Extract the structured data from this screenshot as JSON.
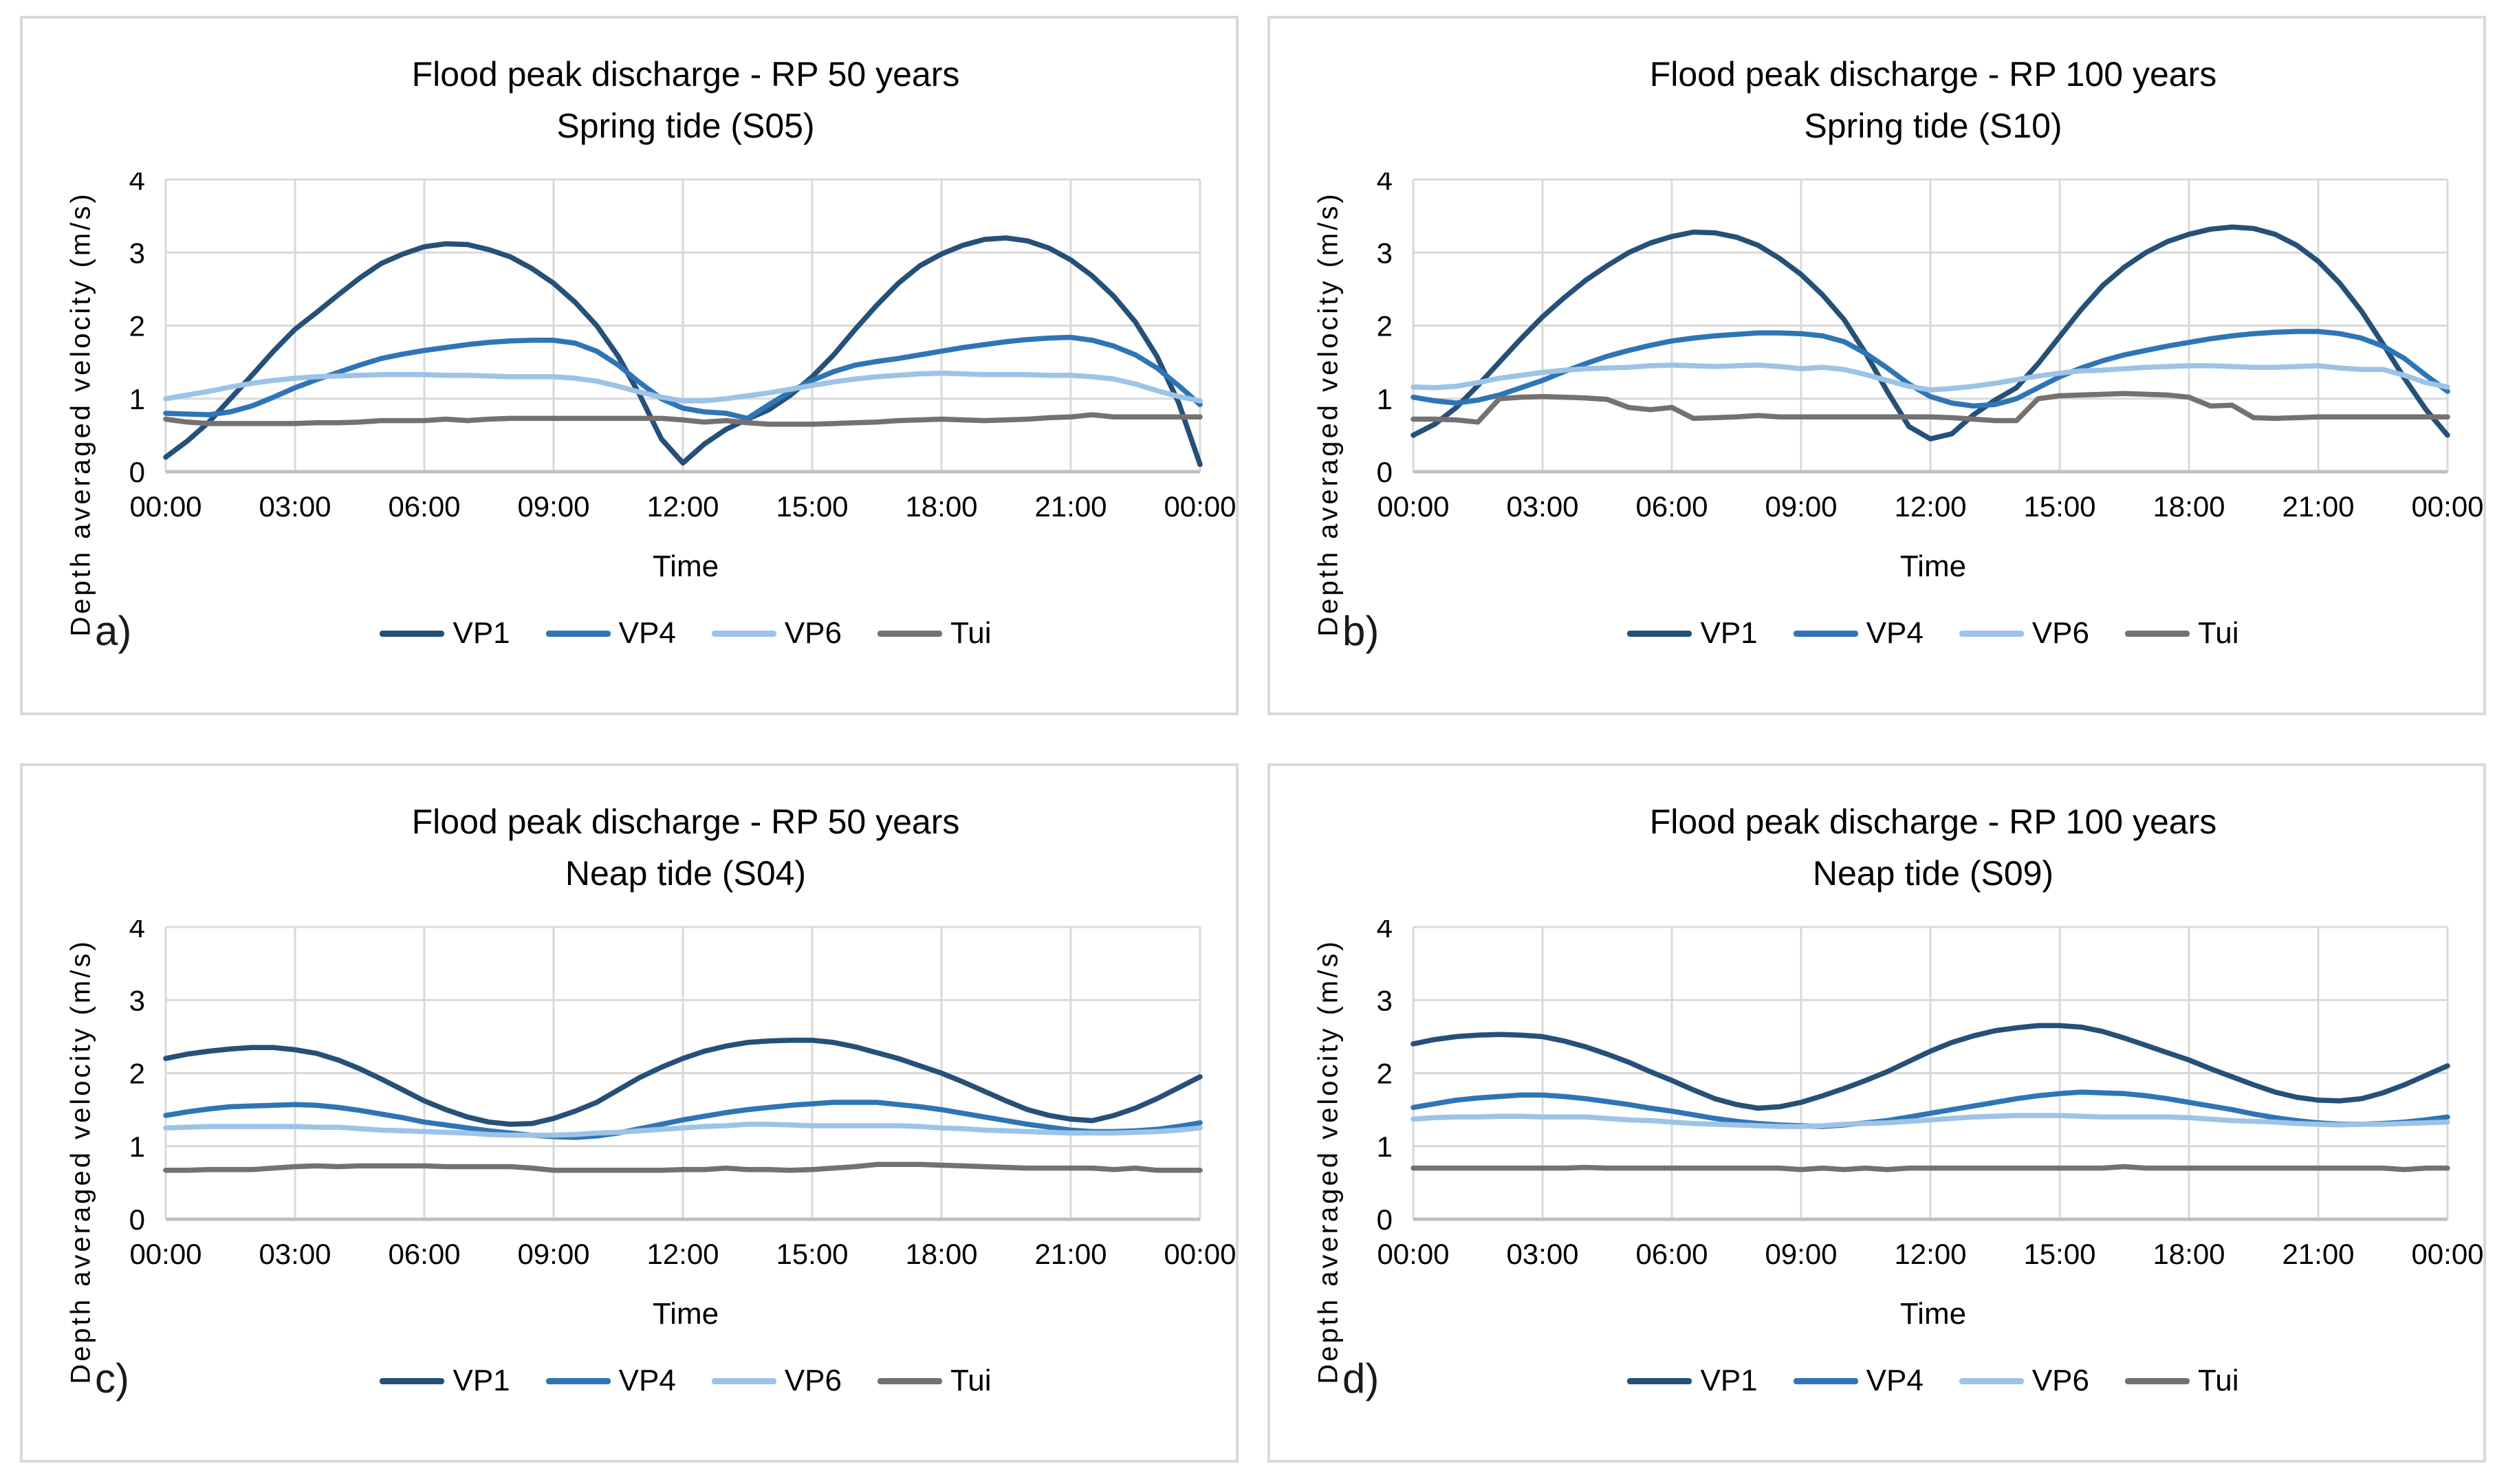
{
  "figure": {
    "background_color": "#ffffff",
    "panel_border_color": "#D9D9D9",
    "gridline_color": "#D9D9D9",
    "axis_line_color": "#BFBFBF",
    "text_color": "#000000",
    "tick_font_size": 42,
    "series_stroke_width": 7.5,
    "gridline_stroke_width": 3,
    "axis_stroke_width": 5
  },
  "chart_data": [
    {
      "panel_label": "a)",
      "type": "line",
      "title": "Flood peak discharge - RP 50 years",
      "subtitle": "Spring tide (S05)",
      "xlabel": "Time",
      "ylabel": "Depth averaged velocity (m/s)",
      "ylim": [
        0,
        4
      ],
      "yticks": [
        0,
        1,
        2,
        3,
        4
      ],
      "x_hours_start": 0,
      "x_hours_end": 24,
      "x_step_hours": 0.5,
      "xticks_hours": [
        0,
        3,
        6,
        9,
        12,
        15,
        18,
        21,
        24
      ],
      "xtick_labels": [
        "00:00",
        "03:00",
        "06:00",
        "09:00",
        "12:00",
        "15:00",
        "18:00",
        "21:00",
        "00:00"
      ],
      "grid": true,
      "legend_position": "bottom",
      "series": [
        {
          "name": "VP1",
          "color": "#255078",
          "values": [
            0.2,
            0.42,
            0.68,
            1.0,
            1.32,
            1.65,
            1.95,
            2.18,
            2.42,
            2.65,
            2.85,
            2.98,
            3.08,
            3.12,
            3.11,
            3.04,
            2.94,
            2.78,
            2.58,
            2.32,
            2.0,
            1.58,
            1.05,
            0.45,
            0.12,
            0.38,
            0.58,
            0.72,
            0.85,
            1.05,
            1.3,
            1.6,
            1.95,
            2.28,
            2.58,
            2.82,
            2.98,
            3.1,
            3.18,
            3.2,
            3.16,
            3.06,
            2.9,
            2.68,
            2.4,
            2.05,
            1.58,
            0.95,
            0.1
          ]
        },
        {
          "name": "VP4",
          "color": "#2E75B6",
          "values": [
            0.8,
            0.79,
            0.78,
            0.82,
            0.9,
            1.02,
            1.15,
            1.26,
            1.36,
            1.46,
            1.55,
            1.61,
            1.66,
            1.7,
            1.74,
            1.77,
            1.79,
            1.8,
            1.8,
            1.76,
            1.65,
            1.46,
            1.22,
            1.0,
            0.87,
            0.82,
            0.8,
            0.73,
            0.92,
            1.1,
            1.25,
            1.37,
            1.46,
            1.51,
            1.55,
            1.6,
            1.65,
            1.7,
            1.74,
            1.78,
            1.81,
            1.83,
            1.84,
            1.8,
            1.72,
            1.6,
            1.42,
            1.18,
            0.92
          ]
        },
        {
          "name": "VP6",
          "color": "#9DC3E6",
          "values": [
            1.0,
            1.05,
            1.1,
            1.16,
            1.21,
            1.25,
            1.28,
            1.3,
            1.31,
            1.32,
            1.33,
            1.33,
            1.33,
            1.32,
            1.32,
            1.31,
            1.3,
            1.3,
            1.3,
            1.28,
            1.24,
            1.17,
            1.09,
            1.02,
            0.97,
            0.97,
            1.0,
            1.04,
            1.08,
            1.13,
            1.18,
            1.23,
            1.27,
            1.3,
            1.32,
            1.34,
            1.35,
            1.34,
            1.33,
            1.33,
            1.33,
            1.32,
            1.32,
            1.3,
            1.27,
            1.2,
            1.11,
            1.03,
            0.97
          ]
        },
        {
          "name": "Tui",
          "color": "#767171",
          "values": [
            0.72,
            0.68,
            0.66,
            0.66,
            0.66,
            0.66,
            0.66,
            0.67,
            0.67,
            0.68,
            0.7,
            0.7,
            0.7,
            0.72,
            0.7,
            0.72,
            0.73,
            0.73,
            0.73,
            0.73,
            0.73,
            0.73,
            0.73,
            0.73,
            0.71,
            0.68,
            0.7,
            0.67,
            0.65,
            0.65,
            0.65,
            0.66,
            0.67,
            0.68,
            0.7,
            0.71,
            0.72,
            0.71,
            0.7,
            0.71,
            0.72,
            0.74,
            0.75,
            0.78,
            0.75,
            0.75,
            0.75,
            0.75,
            0.75
          ]
        }
      ]
    },
    {
      "panel_label": "b)",
      "type": "line",
      "title": "Flood peak discharge - RP 100 years",
      "subtitle": "Spring tide (S10)",
      "xlabel": "Time",
      "ylabel": "Depth averaged velocity (m/s)",
      "ylim": [
        0,
        4
      ],
      "yticks": [
        0,
        1,
        2,
        3,
        4
      ],
      "x_hours_start": 0,
      "x_hours_end": 24,
      "x_step_hours": 0.5,
      "xticks_hours": [
        0,
        3,
        6,
        9,
        12,
        15,
        18,
        21,
        24
      ],
      "xtick_labels": [
        "00:00",
        "03:00",
        "06:00",
        "09:00",
        "12:00",
        "15:00",
        "18:00",
        "21:00",
        "00:00"
      ],
      "grid": true,
      "legend_position": "bottom",
      "series": [
        {
          "name": "VP1",
          "color": "#255078",
          "values": [
            0.5,
            0.65,
            0.88,
            1.18,
            1.5,
            1.82,
            2.12,
            2.38,
            2.62,
            2.82,
            3.0,
            3.13,
            3.22,
            3.28,
            3.27,
            3.21,
            3.1,
            2.92,
            2.7,
            2.42,
            2.08,
            1.62,
            1.1,
            0.62,
            0.45,
            0.52,
            0.78,
            0.98,
            1.15,
            1.48,
            1.85,
            2.22,
            2.55,
            2.8,
            3.0,
            3.15,
            3.25,
            3.32,
            3.35,
            3.33,
            3.25,
            3.1,
            2.88,
            2.58,
            2.2,
            1.75,
            1.28,
            0.85,
            0.5
          ]
        },
        {
          "name": "VP4",
          "color": "#2E75B6",
          "values": [
            1.02,
            0.97,
            0.94,
            0.98,
            1.05,
            1.15,
            1.25,
            1.37,
            1.48,
            1.58,
            1.66,
            1.73,
            1.79,
            1.83,
            1.86,
            1.88,
            1.9,
            1.9,
            1.89,
            1.86,
            1.78,
            1.62,
            1.42,
            1.2,
            1.03,
            0.94,
            0.9,
            0.92,
            1.0,
            1.15,
            1.3,
            1.42,
            1.52,
            1.6,
            1.66,
            1.72,
            1.77,
            1.82,
            1.86,
            1.89,
            1.91,
            1.92,
            1.92,
            1.89,
            1.83,
            1.72,
            1.55,
            1.32,
            1.1
          ]
        },
        {
          "name": "VP6",
          "color": "#9DC3E6",
          "values": [
            1.16,
            1.15,
            1.17,
            1.22,
            1.28,
            1.32,
            1.36,
            1.39,
            1.41,
            1.42,
            1.43,
            1.45,
            1.46,
            1.45,
            1.44,
            1.45,
            1.46,
            1.44,
            1.41,
            1.43,
            1.4,
            1.33,
            1.25,
            1.17,
            1.12,
            1.14,
            1.17,
            1.21,
            1.26,
            1.31,
            1.35,
            1.38,
            1.39,
            1.41,
            1.43,
            1.44,
            1.45,
            1.45,
            1.44,
            1.43,
            1.43,
            1.44,
            1.45,
            1.42,
            1.4,
            1.4,
            1.32,
            1.22,
            1.16
          ]
        },
        {
          "name": "Tui",
          "color": "#767171",
          "values": [
            0.72,
            0.72,
            0.71,
            0.68,
            1.0,
            1.02,
            1.03,
            1.02,
            1.01,
            0.99,
            0.88,
            0.85,
            0.88,
            0.73,
            0.74,
            0.75,
            0.77,
            0.75,
            0.75,
            0.75,
            0.75,
            0.75,
            0.75,
            0.75,
            0.75,
            0.74,
            0.72,
            0.7,
            0.7,
            1.0,
            1.04,
            1.05,
            1.06,
            1.07,
            1.06,
            1.05,
            1.02,
            0.9,
            0.91,
            0.74,
            0.73,
            0.74,
            0.75,
            0.75,
            0.75,
            0.75,
            0.75,
            0.75,
            0.75
          ]
        }
      ]
    },
    {
      "panel_label": "c)",
      "type": "line",
      "title": "Flood peak discharge - RP 50 years",
      "subtitle": "Neap tide (S04)",
      "xlabel": "Time",
      "ylabel": "Depth averaged velocity (m/s)",
      "ylim": [
        0,
        4
      ],
      "yticks": [
        0,
        1,
        2,
        3,
        4
      ],
      "x_hours_start": 0,
      "x_hours_end": 24,
      "x_step_hours": 0.5,
      "xticks_hours": [
        0,
        3,
        6,
        9,
        12,
        15,
        18,
        21,
        24
      ],
      "xtick_labels": [
        "00:00",
        "03:00",
        "06:00",
        "09:00",
        "12:00",
        "15:00",
        "18:00",
        "21:00",
        "00:00"
      ],
      "grid": true,
      "legend_position": "bottom",
      "series": [
        {
          "name": "VP1",
          "color": "#255078",
          "values": [
            2.2,
            2.26,
            2.3,
            2.33,
            2.35,
            2.35,
            2.32,
            2.27,
            2.18,
            2.06,
            1.92,
            1.77,
            1.62,
            1.5,
            1.4,
            1.33,
            1.3,
            1.31,
            1.38,
            1.48,
            1.6,
            1.77,
            1.94,
            2.08,
            2.2,
            2.3,
            2.37,
            2.42,
            2.44,
            2.45,
            2.45,
            2.42,
            2.36,
            2.28,
            2.2,
            2.1,
            2.0,
            1.88,
            1.75,
            1.62,
            1.5,
            1.42,
            1.37,
            1.35,
            1.42,
            1.52,
            1.65,
            1.8,
            1.95
          ]
        },
        {
          "name": "VP4",
          "color": "#2E75B6",
          "values": [
            1.42,
            1.47,
            1.51,
            1.54,
            1.55,
            1.56,
            1.57,
            1.56,
            1.53,
            1.49,
            1.44,
            1.39,
            1.33,
            1.29,
            1.25,
            1.21,
            1.18,
            1.15,
            1.13,
            1.12,
            1.14,
            1.18,
            1.24,
            1.3,
            1.36,
            1.41,
            1.46,
            1.5,
            1.53,
            1.56,
            1.58,
            1.6,
            1.6,
            1.6,
            1.57,
            1.54,
            1.5,
            1.45,
            1.4,
            1.35,
            1.3,
            1.26,
            1.22,
            1.2,
            1.2,
            1.21,
            1.23,
            1.27,
            1.32
          ]
        },
        {
          "name": "VP6",
          "color": "#9DC3E6",
          "values": [
            1.25,
            1.26,
            1.27,
            1.27,
            1.27,
            1.27,
            1.27,
            1.26,
            1.26,
            1.24,
            1.22,
            1.21,
            1.2,
            1.19,
            1.18,
            1.16,
            1.15,
            1.15,
            1.15,
            1.16,
            1.18,
            1.19,
            1.21,
            1.23,
            1.25,
            1.27,
            1.28,
            1.3,
            1.3,
            1.29,
            1.28,
            1.28,
            1.28,
            1.28,
            1.28,
            1.27,
            1.25,
            1.24,
            1.22,
            1.21,
            1.2,
            1.19,
            1.18,
            1.18,
            1.18,
            1.19,
            1.2,
            1.22,
            1.25
          ]
        },
        {
          "name": "Tui",
          "color": "#767171",
          "values": [
            0.67,
            0.67,
            0.68,
            0.68,
            0.68,
            0.7,
            0.72,
            0.73,
            0.72,
            0.73,
            0.73,
            0.73,
            0.73,
            0.72,
            0.72,
            0.72,
            0.72,
            0.7,
            0.67,
            0.67,
            0.67,
            0.67,
            0.67,
            0.67,
            0.68,
            0.68,
            0.7,
            0.68,
            0.68,
            0.67,
            0.68,
            0.7,
            0.72,
            0.75,
            0.75,
            0.75,
            0.74,
            0.73,
            0.72,
            0.71,
            0.7,
            0.7,
            0.7,
            0.7,
            0.68,
            0.7,
            0.67,
            0.67,
            0.67
          ]
        }
      ]
    },
    {
      "panel_label": "d)",
      "type": "line",
      "title": "Flood peak discharge - RP 100 years",
      "subtitle": "Neap tide (S09)",
      "xlabel": "Time",
      "ylabel": "Depth averaged velocity (m/s)",
      "ylim": [
        0,
        4
      ],
      "yticks": [
        0,
        1,
        2,
        3,
        4
      ],
      "x_hours_start": 0,
      "x_hours_end": 24,
      "x_step_hours": 0.5,
      "xticks_hours": [
        0,
        3,
        6,
        9,
        12,
        15,
        18,
        21,
        24
      ],
      "xtick_labels": [
        "00:00",
        "03:00",
        "06:00",
        "09:00",
        "12:00",
        "15:00",
        "18:00",
        "21:00",
        "00:00"
      ],
      "grid": true,
      "legend_position": "bottom",
      "series": [
        {
          "name": "VP1",
          "color": "#255078",
          "values": [
            2.4,
            2.46,
            2.5,
            2.52,
            2.53,
            2.52,
            2.5,
            2.44,
            2.36,
            2.26,
            2.15,
            2.02,
            1.9,
            1.77,
            1.65,
            1.57,
            1.52,
            1.54,
            1.6,
            1.69,
            1.79,
            1.9,
            2.02,
            2.16,
            2.3,
            2.42,
            2.51,
            2.58,
            2.62,
            2.65,
            2.65,
            2.63,
            2.57,
            2.48,
            2.38,
            2.28,
            2.18,
            2.06,
            1.95,
            1.84,
            1.74,
            1.67,
            1.63,
            1.62,
            1.65,
            1.73,
            1.84,
            1.97,
            2.1
          ]
        },
        {
          "name": "VP4",
          "color": "#2E75B6",
          "values": [
            1.53,
            1.58,
            1.63,
            1.66,
            1.68,
            1.7,
            1.7,
            1.68,
            1.65,
            1.61,
            1.57,
            1.52,
            1.48,
            1.43,
            1.38,
            1.34,
            1.31,
            1.29,
            1.28,
            1.27,
            1.29,
            1.32,
            1.35,
            1.4,
            1.45,
            1.5,
            1.55,
            1.6,
            1.65,
            1.69,
            1.72,
            1.74,
            1.73,
            1.72,
            1.69,
            1.65,
            1.6,
            1.55,
            1.5,
            1.44,
            1.39,
            1.35,
            1.32,
            1.3,
            1.3,
            1.31,
            1.33,
            1.36,
            1.4
          ]
        },
        {
          "name": "VP6",
          "color": "#9DC3E6",
          "values": [
            1.37,
            1.39,
            1.4,
            1.4,
            1.41,
            1.41,
            1.4,
            1.4,
            1.4,
            1.38,
            1.36,
            1.35,
            1.33,
            1.31,
            1.3,
            1.29,
            1.28,
            1.27,
            1.27,
            1.28,
            1.3,
            1.31,
            1.32,
            1.34,
            1.36,
            1.38,
            1.4,
            1.41,
            1.42,
            1.42,
            1.42,
            1.41,
            1.4,
            1.4,
            1.4,
            1.4,
            1.39,
            1.37,
            1.35,
            1.34,
            1.33,
            1.31,
            1.3,
            1.29,
            1.3,
            1.3,
            1.31,
            1.32,
            1.33
          ]
        },
        {
          "name": "Tui",
          "color": "#767171",
          "values": [
            0.7,
            0.7,
            0.7,
            0.7,
            0.7,
            0.7,
            0.7,
            0.7,
            0.71,
            0.7,
            0.7,
            0.7,
            0.7,
            0.7,
            0.7,
            0.7,
            0.7,
            0.7,
            0.68,
            0.7,
            0.68,
            0.7,
            0.68,
            0.7,
            0.7,
            0.7,
            0.7,
            0.7,
            0.7,
            0.7,
            0.7,
            0.7,
            0.7,
            0.72,
            0.7,
            0.7,
            0.7,
            0.7,
            0.7,
            0.7,
            0.7,
            0.7,
            0.7,
            0.7,
            0.7,
            0.7,
            0.68,
            0.7,
            0.7
          ]
        }
      ]
    }
  ]
}
